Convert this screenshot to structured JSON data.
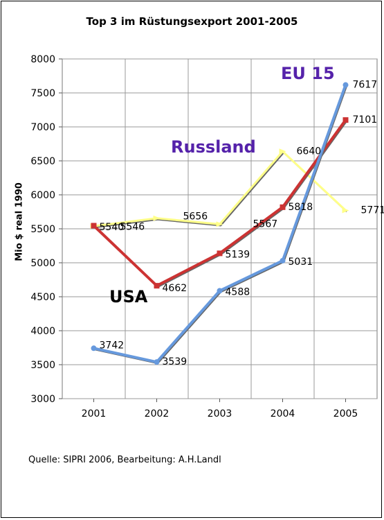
{
  "title": "Top 3 im Rüstungsexport 2001-2005",
  "source": "Quelle: SIPRI 2006, Bearbeitung: A.H.Landl",
  "chart_data": {
    "type": "line",
    "title": "Top 3 im Rüstungsexport 2001-2005",
    "xlabel": "",
    "ylabel": "Mio $ real 1990",
    "categories": [
      "2001",
      "2002",
      "2003",
      "2004",
      "2005"
    ],
    "ylim": [
      3000,
      8000
    ],
    "yticks": [
      3000,
      3500,
      4000,
      4500,
      5000,
      5500,
      6000,
      6500,
      7000,
      7500,
      8000
    ],
    "grid": true,
    "legend": "none",
    "series": [
      {
        "name": "USA",
        "values": [
          5546,
          4662,
          5139,
          5818,
          7101
        ],
        "color": "#cc3333"
      },
      {
        "name": "Russland",
        "values": [
          5540,
          5656,
          5567,
          6640,
          5771
        ],
        "color": "#ffff88"
      },
      {
        "name": "EU 15",
        "values": [
          3742,
          3539,
          4588,
          5031,
          7617
        ],
        "color": "#6699dd"
      }
    ],
    "data_labels": [
      {
        "text": "5540",
        "series": 1,
        "index": 0
      },
      {
        "text": "5546",
        "series": 0,
        "index": 0
      },
      {
        "text": "4662",
        "series": 0,
        "index": 1
      },
      {
        "text": "5139",
        "series": 0,
        "index": 2
      },
      {
        "text": "5818",
        "series": 0,
        "index": 3
      },
      {
        "text": "7101",
        "series": 0,
        "index": 4
      },
      {
        "text": "5656",
        "series": 1,
        "index": 1
      },
      {
        "text": "5567",
        "series": 1,
        "index": 2
      },
      {
        "text": "6640",
        "series": 1,
        "index": 3
      },
      {
        "text": "5771",
        "series": 1,
        "index": 4
      },
      {
        "text": "3742",
        "series": 2,
        "index": 0
      },
      {
        "text": "3539",
        "series": 2,
        "index": 1
      },
      {
        "text": "4588",
        "series": 2,
        "index": 2
      },
      {
        "text": "5031",
        "series": 2,
        "index": 3
      },
      {
        "text": "7617",
        "series": 2,
        "index": 4
      }
    ]
  },
  "series_labels": {
    "eu": "EU 15",
    "russland": "Russland",
    "usa": "USA"
  },
  "colors": {
    "eu_label": "#5522aa",
    "russland_label": "#5522aa",
    "usa_label": "#000000"
  }
}
